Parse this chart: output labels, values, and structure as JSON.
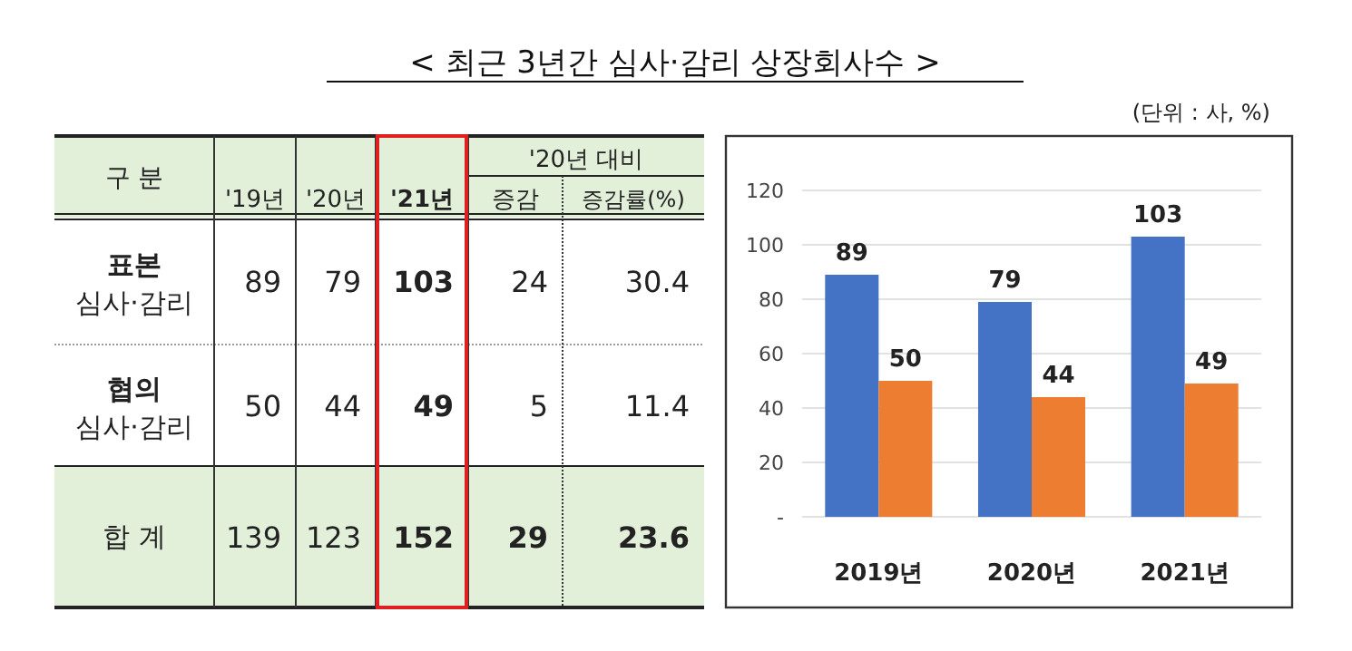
{
  "chart_data": [
    {
      "type": "other",
      "title": "< 최근 3년간 심사·감리 상장회사수 >",
      "annotations": [
        "구 분",
        "'20년 대비"
      ],
      "categories": [
        "'19년",
        "'20년",
        "'21년",
        "증감",
        "증감률(%)"
      ],
      "y_categories": [
        "표본 심사·감리",
        "협의 심사·감리",
        "합 계"
      ],
      "cell_labels": [
        [
          "89",
          "79",
          "103",
          "24",
          "30.4"
        ],
        [
          "50",
          "44",
          "49",
          "5",
          "11.4"
        ],
        [
          "139",
          "123",
          "152",
          "29",
          "23.6"
        ]
      ]
    },
    {
      "type": "bar",
      "subtitle": "(단위 : 사, %)",
      "categories": [
        "2019년",
        "2020년",
        "2021년"
      ],
      "series": [
        {
          "color": "#4472c4",
          "values": [
            89,
            79,
            103
          ]
        },
        {
          "color": "#ed7d31",
          "values": [
            50,
            44,
            49
          ]
        }
      ],
      "ylim": [
        0,
        120
      ],
      "yticks": [
        {
          "value": 0,
          "label": "-"
        },
        20,
        40,
        60,
        80,
        100,
        120
      ],
      "grid": "y",
      "data_labels": true
    }
  ]
}
